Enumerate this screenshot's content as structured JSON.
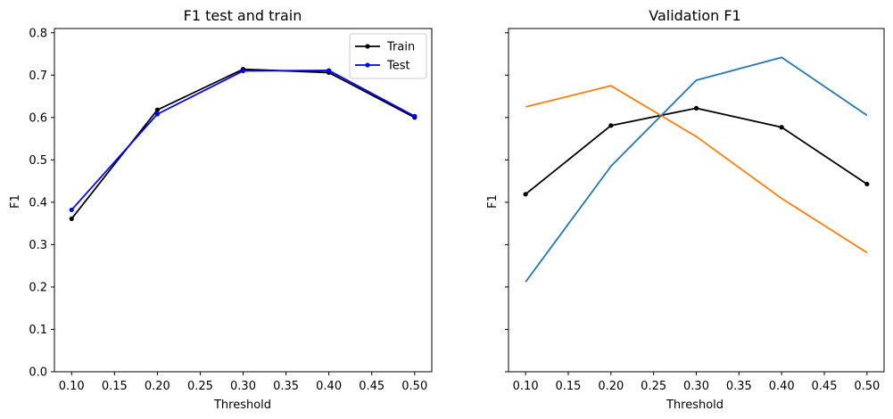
{
  "chart_data": [
    {
      "type": "line",
      "title": "F1 test and train",
      "xlabel": "Threshold",
      "ylabel": "F1",
      "x": [
        0.1,
        0.2,
        0.3,
        0.4,
        0.5
      ],
      "xlim": [
        0.08,
        0.52
      ],
      "ylim": [
        0.0,
        0.81
      ],
      "xticks": [
        "0.10",
        "0.15",
        "0.20",
        "0.25",
        "0.30",
        "0.35",
        "0.40",
        "0.45",
        "0.50"
      ],
      "xtick_values": [
        0.1,
        0.15,
        0.2,
        0.25,
        0.3,
        0.35,
        0.4,
        0.45,
        0.5
      ],
      "yticks": [
        "0.0",
        "0.1",
        "0.2",
        "0.3",
        "0.4",
        "0.5",
        "0.6",
        "0.7",
        "0.8"
      ],
      "ytick_values": [
        0.0,
        0.1,
        0.2,
        0.3,
        0.4,
        0.5,
        0.6,
        0.7,
        0.8
      ],
      "show_ytick_labels": true,
      "grid": false,
      "legend": "top-right",
      "series": [
        {
          "name": "Train",
          "color": "#000000",
          "marker": "dot",
          "values": [
            0.361,
            0.618,
            0.714,
            0.706,
            0.6
          ]
        },
        {
          "name": "Test",
          "color": "#0000ff",
          "marker": "dot",
          "values": [
            0.382,
            0.608,
            0.71,
            0.711,
            0.603
          ]
        }
      ]
    },
    {
      "type": "line",
      "title": "Validation F1",
      "xlabel": "Threshold",
      "ylabel": "F1",
      "x": [
        0.1,
        0.2,
        0.3,
        0.4,
        0.5
      ],
      "xlim": [
        0.08,
        0.52
      ],
      "ylim": [
        0.0,
        0.81
      ],
      "xticks": [
        "0.10",
        "0.15",
        "0.20",
        "0.25",
        "0.30",
        "0.35",
        "0.40",
        "0.45",
        "0.50"
      ],
      "xtick_values": [
        0.1,
        0.15,
        0.2,
        0.25,
        0.3,
        0.35,
        0.4,
        0.45,
        0.5
      ],
      "yticks": [
        "",
        "",
        "",
        "",
        "",
        "",
        "",
        "",
        ""
      ],
      "ytick_values": [
        0.0,
        0.1,
        0.2,
        0.3,
        0.4,
        0.5,
        0.6,
        0.7,
        0.8
      ],
      "show_ytick_labels": false,
      "grid": false,
      "legend": "none",
      "series": [
        {
          "color": "#000000",
          "marker": "dot",
          "values": [
            0.419,
            0.581,
            0.622,
            0.577,
            0.443
          ]
        },
        {
          "color": "#ff7f0e",
          "marker": "none",
          "values": [
            0.625,
            0.675,
            0.555,
            0.409,
            0.281
          ]
        },
        {
          "color": "#1f77b4",
          "marker": "none",
          "values": [
            0.212,
            0.485,
            0.688,
            0.742,
            0.605
          ]
        }
      ]
    }
  ]
}
